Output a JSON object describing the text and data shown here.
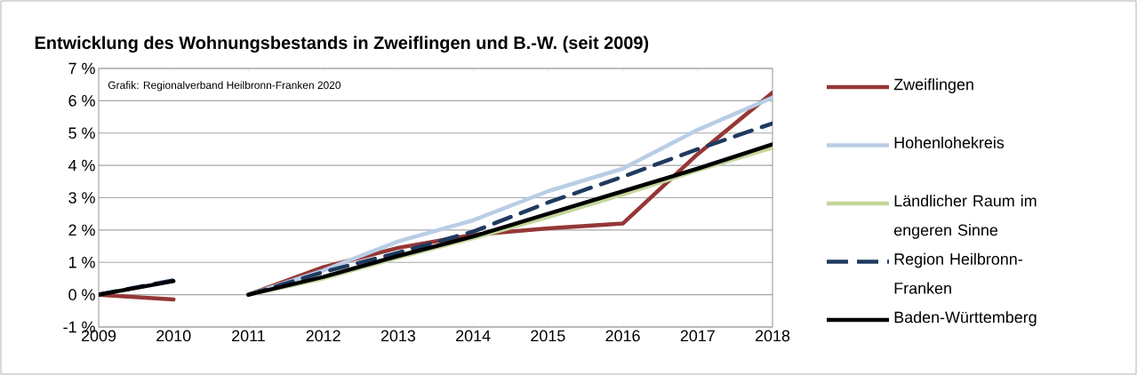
{
  "chart_data": {
    "type": "line",
    "title": "Entwicklung des Wohnungsbestands in Zweiflingen und B.-W. (seit 2009)",
    "annotations": [
      "Grafik: Regionalverband Heilbronn-Franken 2020"
    ],
    "xlim": [
      2009,
      2018
    ],
    "xticks": [
      2009,
      2010,
      2011,
      2012,
      2013,
      2014,
      2015,
      2016,
      2017,
      2018
    ],
    "ylim": [
      -1,
      7
    ],
    "yticks": [
      {
        "value": -1,
        "label": "-1 %"
      },
      {
        "value": 0,
        "label": "0 %"
      },
      {
        "value": 1,
        "label": "1 %"
      },
      {
        "value": 2,
        "label": "2 %"
      },
      {
        "value": 3,
        "label": "3 %"
      },
      {
        "value": 4,
        "label": "4 %"
      },
      {
        "value": 5,
        "label": "5 %"
      },
      {
        "value": 6,
        "label": "6 %"
      },
      {
        "value": 7,
        "label": "7 %"
      }
    ],
    "grid": "y",
    "legend": "right",
    "marker": "none",
    "series": [
      {
        "name": "Zweiflingen",
        "color": "#953735",
        "line_style": "solid",
        "x": [
          2011,
          2012,
          2013,
          2014,
          2015,
          2016,
          2017,
          2018
        ],
        "values": [
          0,
          0.85,
          1.45,
          1.85,
          2.05,
          2.2,
          4.35,
          6.25
        ]
      },
      {
        "name": "Hohenlohekreis",
        "color": "#b9cde5",
        "line_style": "solid",
        "x": [
          2011,
          2012,
          2013,
          2014,
          2015,
          2016,
          2017,
          2018
        ],
        "values": [
          0,
          0.75,
          1.65,
          2.3,
          3.2,
          3.9,
          5.1,
          6.1
        ]
      },
      {
        "name": "Ländlicher Raum im engeren Sinne",
        "color": "#c3d69b",
        "line_style": "solid",
        "x": [
          2011,
          2012,
          2013,
          2014,
          2015,
          2016,
          2017,
          2018
        ],
        "values": [
          0,
          0.5,
          1.15,
          1.75,
          2.4,
          3.1,
          3.85,
          4.55
        ]
      },
      {
        "name": "Region Heilbronn-Franken",
        "color": "#1f3a5f",
        "line_style": "dashed",
        "x": [
          2011,
          2012,
          2013,
          2014,
          2015,
          2016,
          2017,
          2018
        ],
        "values": [
          0,
          0.7,
          1.3,
          1.95,
          2.85,
          3.65,
          4.5,
          5.3
        ]
      },
      {
        "name": "Baden-Württemberg",
        "color": "#000000",
        "line_style": "solid",
        "x": [
          2011,
          2012,
          2013,
          2014,
          2015,
          2016,
          2017,
          2018
        ],
        "values": [
          0,
          0.55,
          1.2,
          1.8,
          2.5,
          3.2,
          3.9,
          4.65
        ]
      },
      {
        "color": "#953735",
        "line_style": "solid",
        "x": [
          2009,
          2010
        ],
        "values": [
          0,
          -0.15
        ]
      },
      {
        "color": "#1f3a5f",
        "line_style": "dashed",
        "x": [
          2009,
          2010
        ],
        "values": [
          0,
          0.45
        ]
      },
      {
        "color": "#000000",
        "line_style": "solid",
        "x": [
          2009,
          2010
        ],
        "values": [
          0,
          0.42
        ]
      }
    ]
  }
}
